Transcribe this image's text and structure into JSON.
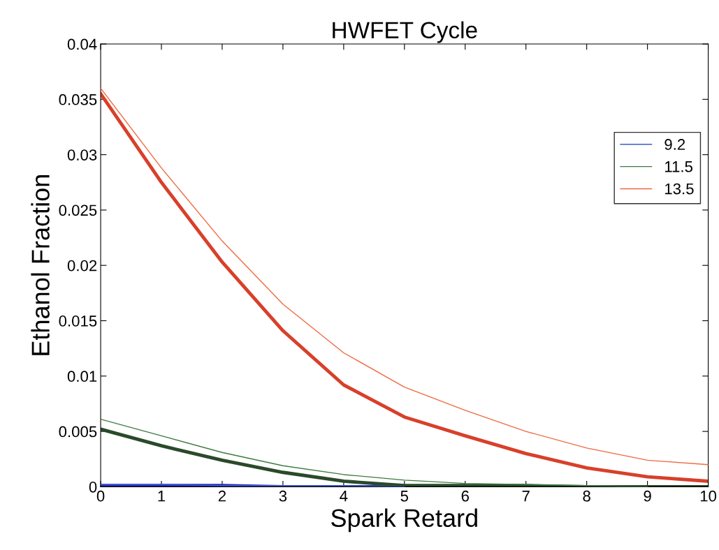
{
  "chart_data": {
    "type": "line",
    "title": "HWFET Cycle",
    "xlabel": "Spark Retard",
    "ylabel": "Ethanol Fraction",
    "x": [
      0,
      1,
      2,
      3,
      4,
      5,
      6,
      7,
      8,
      9,
      10
    ],
    "series": [
      {
        "name": "9.2",
        "color": "#3a5ad0",
        "values": [
          0.0002,
          0.0002,
          0.0001,
          0.0001,
          0.0001,
          0,
          null,
          null,
          null,
          null,
          null
        ]
      },
      {
        "name": "11.5",
        "color": "#3e7a3e",
        "values": [
          0.0061,
          0.0046,
          0.0031,
          0.0019,
          0.0011,
          0.0006,
          0.0003,
          0.0002,
          0.0001,
          0,
          null
        ]
      },
      {
        "name": "13.5",
        "color": "#ee6a40",
        "values": [
          0.036,
          0.0288,
          0.0222,
          0.0165,
          0.0121,
          0.009,
          0.0069,
          0.005,
          0.0035,
          0.0024,
          0.002
        ]
      },
      {
        "color": "#2a2ab0",
        "values": [
          0.0001,
          0.0001,
          0.0001,
          0,
          0,
          0,
          0,
          null,
          null,
          null,
          null
        ]
      },
      {
        "color": "#2a4a2a",
        "values": [
          0.0052,
          0.0037,
          0.0024,
          0.0013,
          0.0005,
          0.0001,
          0.0001,
          0.0001,
          0,
          0,
          0
        ]
      },
      {
        "color": "#d8402a",
        "values": [
          0.0355,
          0.0275,
          0.0203,
          0.0141,
          0.0092,
          0.0063,
          0.0046,
          0.003,
          0.0017,
          0.0009,
          0.0005
        ]
      }
    ],
    "xlim": [
      0,
      10
    ],
    "xticks": [
      0,
      1,
      2,
      3,
      4,
      5,
      6,
      7,
      8,
      9,
      10
    ],
    "ylim": [
      0,
      0.04
    ],
    "yticks": [
      0,
      0.005,
      0.01,
      0.015,
      0.02,
      0.025,
      0.03,
      0.035,
      0.04
    ],
    "grid": false,
    "legend": "right",
    "marker": "none",
    "line_style": "solid"
  }
}
